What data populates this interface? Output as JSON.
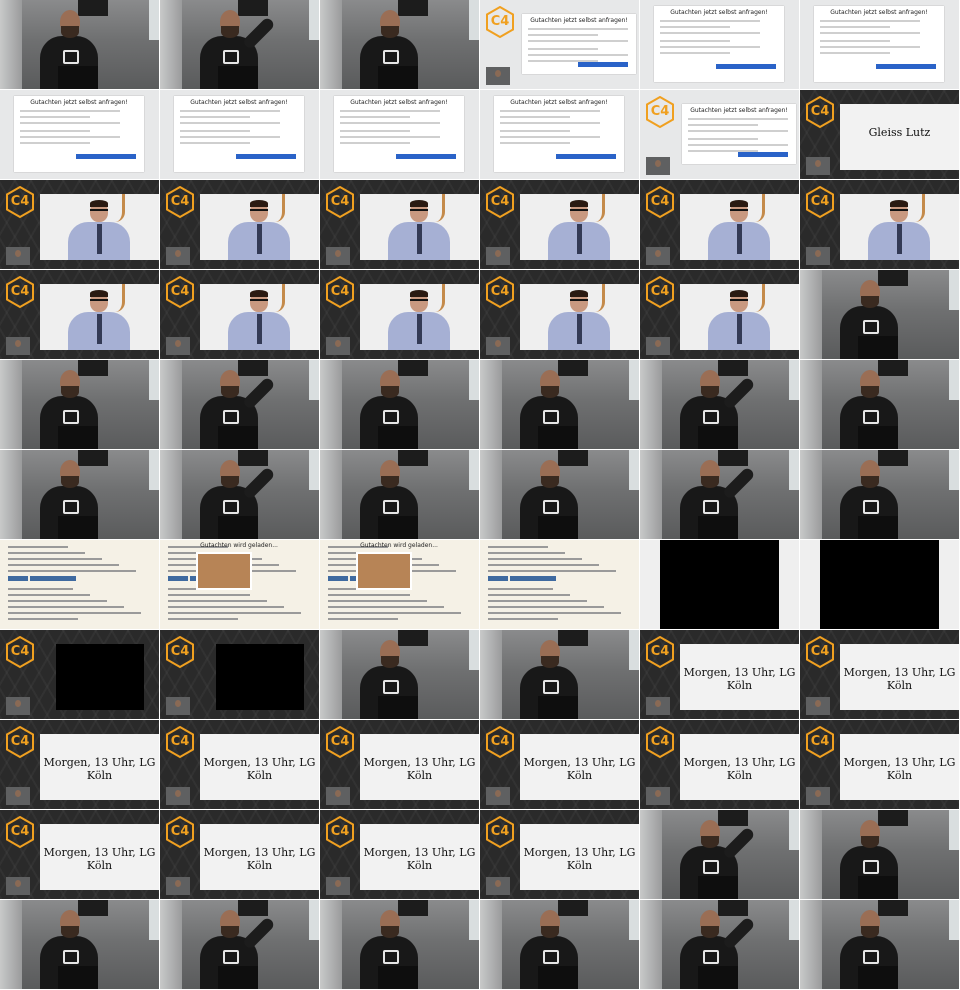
{
  "slides": {
    "form_title": "Gutachten jetzt selbst anfragen!",
    "gleiss": "Gleiss Lutz",
    "morgen": "Morgen, 13 Uhr, LG Köln",
    "doc_overlay": "Gutachten wird geladen..."
  },
  "brand": {
    "logo_text": "C4",
    "accent": "#f0a020"
  },
  "tiles": [
    "speaker",
    "speaker",
    "speaker",
    "form-dark",
    "form",
    "form",
    "form",
    "form",
    "form",
    "form",
    "form-dark",
    "gleiss",
    "person",
    "person",
    "person",
    "person",
    "person",
    "person",
    "person",
    "person",
    "person",
    "person",
    "person",
    "speaker",
    "speaker",
    "speaker",
    "speaker",
    "speaker",
    "speaker",
    "speaker",
    "speaker",
    "speaker",
    "speaker",
    "speaker",
    "speaker",
    "speaker",
    "doc",
    "doc-overlay",
    "doc-overlay",
    "doc",
    "black",
    "black",
    "c4-black",
    "c4-black",
    "speaker",
    "speaker",
    "morgen",
    "morgen",
    "morgen",
    "morgen",
    "morgen",
    "morgen",
    "morgen",
    "morgen",
    "morgen",
    "morgen",
    "morgen",
    "morgen",
    "speaker",
    "speaker",
    "speaker",
    "speaker",
    "speaker",
    "speaker",
    "speaker",
    "speaker"
  ]
}
